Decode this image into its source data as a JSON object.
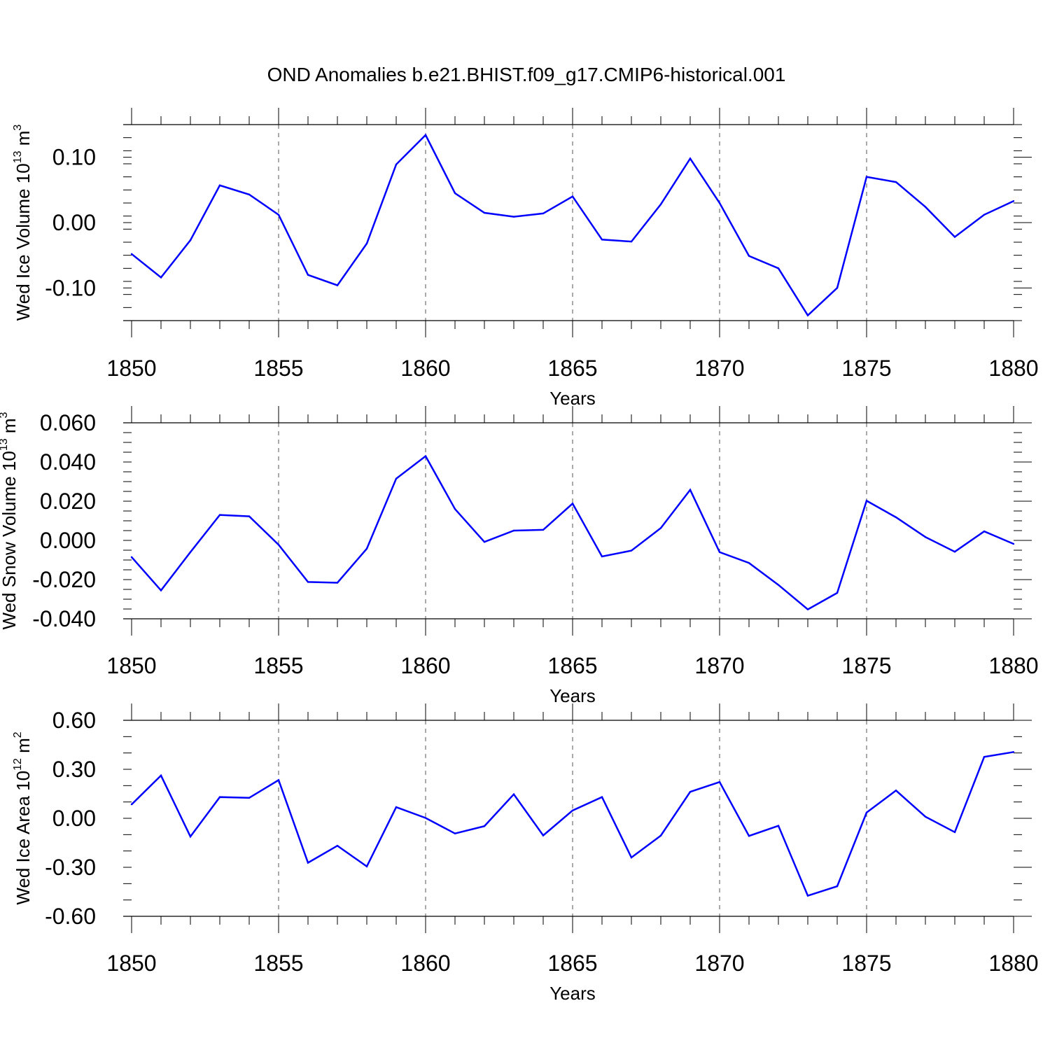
{
  "figure": {
    "title": "OND Anomalies b.e21.BHIST.f09_g17.CMIP6-historical.001"
  },
  "colors": {
    "line": "#0000ff",
    "axis": "#000000",
    "grid": "#555555",
    "background": "#ffffff"
  },
  "chart_data": [
    {
      "type": "line",
      "title": "",
      "xlabel": "Years",
      "ylabel": {
        "prefix": "Wed Ice Volume 10",
        "exp": "13",
        "unit": " m",
        "unit_exp": "3"
      },
      "xlim": [
        1850,
        1880
      ],
      "ylim": [
        -0.15,
        0.15
      ],
      "x_ticks": [
        "1850",
        "1855",
        "1860",
        "1865",
        "1870",
        "1875",
        "1880"
      ],
      "y_ticks": [
        {
          "value": 0.1,
          "label": "0.10"
        },
        {
          "value": 0.0,
          "label": "0.00"
        },
        {
          "value": -0.1,
          "label": "-0.10"
        }
      ],
      "y_minor_step": 0.02,
      "grid": "x-dashed",
      "x": [
        1850,
        1851,
        1852,
        1853,
        1854,
        1855,
        1856,
        1857,
        1858,
        1859,
        1860,
        1861,
        1862,
        1863,
        1864,
        1865,
        1866,
        1867,
        1868,
        1869,
        1870,
        1871,
        1872,
        1873,
        1874,
        1875,
        1876,
        1877,
        1878,
        1879,
        1880
      ],
      "series": [
        {
          "values": [
            -0.048,
            -0.084,
            -0.027,
            0.057,
            0.043,
            0.012,
            -0.08,
            -0.096,
            -0.032,
            0.089,
            0.134,
            0.045,
            0.015,
            0.009,
            0.014,
            0.04,
            -0.026,
            -0.029,
            0.028,
            0.098,
            0.03,
            -0.051,
            -0.07,
            -0.142,
            -0.1,
            0.07,
            0.062,
            0.024,
            -0.022,
            0.012,
            0.033
          ]
        }
      ]
    },
    {
      "type": "line",
      "title": "",
      "xlabel": "Years",
      "ylabel": {
        "prefix": "Wed Snow Volume 10",
        "exp": "13",
        "unit": " m",
        "unit_exp": "3"
      },
      "xlim": [
        1850,
        1880
      ],
      "ylim": [
        -0.04,
        0.06
      ],
      "x_ticks": [
        "1850",
        "1855",
        "1860",
        "1865",
        "1870",
        "1875",
        "1880"
      ],
      "y_ticks": [
        {
          "value": 0.06,
          "label": "0.060"
        },
        {
          "value": 0.04,
          "label": "0.040"
        },
        {
          "value": 0.02,
          "label": "0.020"
        },
        {
          "value": 0.0,
          "label": "0.000"
        },
        {
          "value": -0.02,
          "label": "-0.020"
        },
        {
          "value": -0.04,
          "label": "-0.040"
        }
      ],
      "y_minor_step": 0.005,
      "grid": "x-dashed",
      "x": [
        1850,
        1851,
        1852,
        1853,
        1854,
        1855,
        1856,
        1857,
        1858,
        1859,
        1860,
        1861,
        1862,
        1863,
        1864,
        1865,
        1866,
        1867,
        1868,
        1869,
        1870,
        1871,
        1872,
        1873,
        1874,
        1875,
        1876,
        1877,
        1878,
        1879,
        1880
      ],
      "series": [
        {
          "values": [
            -0.0085,
            -0.0255,
            -0.006,
            0.013,
            0.0123,
            -0.0022,
            -0.0212,
            -0.0216,
            -0.0042,
            0.0315,
            0.043,
            0.016,
            -0.0008,
            0.005,
            0.0054,
            0.0188,
            -0.0082,
            -0.0052,
            0.0063,
            0.0258,
            -0.006,
            -0.0115,
            -0.0227,
            -0.0352,
            -0.0268,
            0.0202,
            0.0118,
            0.0017,
            -0.0058,
            0.0046,
            -0.0018
          ]
        }
      ]
    },
    {
      "type": "line",
      "title": "",
      "xlabel": "Years",
      "ylabel": {
        "prefix": "Wed Ice Area 10",
        "exp": "12",
        "unit": " m",
        "unit_exp": "2"
      },
      "xlim": [
        1850,
        1880
      ],
      "ylim": [
        -0.6,
        0.6
      ],
      "x_ticks": [
        "1850",
        "1855",
        "1860",
        "1865",
        "1870",
        "1875",
        "1880"
      ],
      "y_ticks": [
        {
          "value": 0.6,
          "label": "0.60"
        },
        {
          "value": 0.3,
          "label": "0.30"
        },
        {
          "value": 0.0,
          "label": "0.00"
        },
        {
          "value": -0.3,
          "label": "-0.30"
        },
        {
          "value": -0.6,
          "label": "-0.60"
        }
      ],
      "y_minor_step": 0.1,
      "grid": "x-dashed",
      "x": [
        1850,
        1851,
        1852,
        1853,
        1854,
        1855,
        1856,
        1857,
        1858,
        1859,
        1860,
        1861,
        1862,
        1863,
        1864,
        1865,
        1866,
        1867,
        1868,
        1869,
        1870,
        1871,
        1872,
        1873,
        1874,
        1875,
        1876,
        1877,
        1878,
        1879,
        1880
      ],
      "series": [
        {
          "values": [
            0.085,
            0.262,
            -0.112,
            0.13,
            0.125,
            0.234,
            -0.272,
            -0.168,
            -0.295,
            0.068,
            0.002,
            -0.093,
            -0.048,
            0.147,
            -0.105,
            0.048,
            0.13,
            -0.24,
            -0.106,
            0.162,
            0.222,
            -0.108,
            -0.046,
            -0.474,
            -0.416,
            0.035,
            0.17,
            0.01,
            -0.085,
            0.376,
            0.406
          ]
        }
      ]
    }
  ]
}
